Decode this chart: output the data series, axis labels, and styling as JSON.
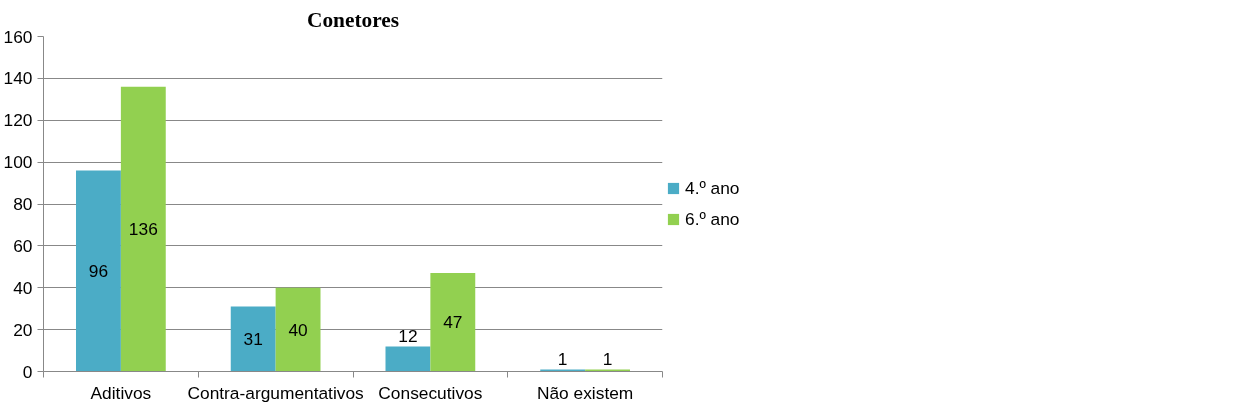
{
  "chart_data": {
    "type": "bar",
    "title": "Conetores",
    "categories": [
      "Aditivos",
      "Contra-argumentativos",
      "Consecutivos",
      "Não existem"
    ],
    "series": [
      {
        "name": "4.º ano",
        "color": "#4bacc6",
        "values": [
          96,
          31,
          12,
          1
        ]
      },
      {
        "name": "6.º ano",
        "color": "#92d050",
        "values": [
          136,
          40,
          47,
          1
        ]
      }
    ],
    "ylim": [
      0,
      160
    ],
    "yticks": [
      0,
      20,
      40,
      60,
      80,
      100,
      120,
      140,
      160
    ],
    "grid": "y",
    "legend": "right",
    "data_labels": true
  }
}
